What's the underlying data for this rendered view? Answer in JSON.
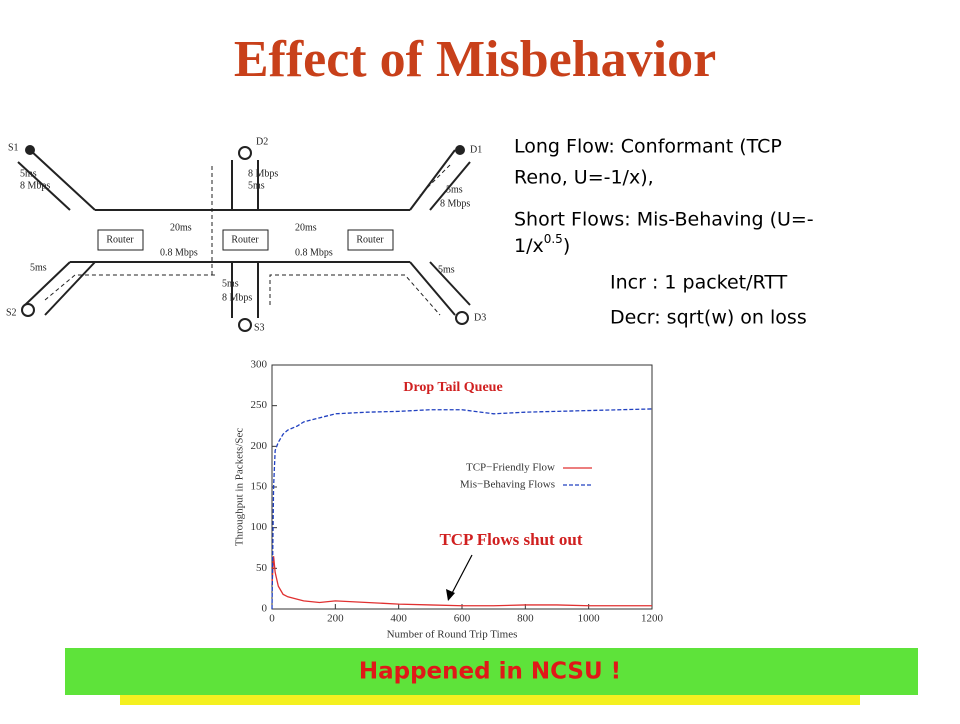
{
  "title": "Effect of Misbehavior",
  "diagram": {
    "labels": [
      "S1",
      "D2",
      "D1",
      "S2",
      "S3",
      "D3",
      "5ms",
      "8 Mbps",
      "8 Mbps",
      "5ms",
      "5ms",
      "8 Mbps",
      "20ms",
      "0.8 Mbps",
      "20ms",
      "0.8 Mbps",
      "5ms",
      "5ms",
      "8 Mbps",
      "5ms",
      "Router",
      "Router",
      "Router"
    ]
  },
  "notes": {
    "line1": "Long Flow: Conformant (TCP",
    "line2": "Reno, U=-1/x),",
    "line3": "Short Flows: Mis-Behaving (U=-",
    "line4_pre": "1/x",
    "line4_sup": "0.5",
    "line4_post": ")",
    "incr": "Incr : 1 packet/RTT",
    "decr": "Decr:  sqrt(w) on loss"
  },
  "chart_data": {
    "type": "line",
    "title": "Drop Tail Queue",
    "annotation": "TCP Flows shut out",
    "xlabel": "Number of Round Trip Times",
    "ylabel": "Throughput in Packets/Sec",
    "x": [
      0,
      5,
      10,
      20,
      35,
      50,
      80,
      100,
      150,
      200,
      300,
      400,
      500,
      600,
      700,
      800,
      900,
      1000,
      1100,
      1200
    ],
    "series": [
      {
        "name": "TCP−Friendly Flow",
        "color": "#e03030",
        "dashed": false,
        "values": [
          30,
          65,
          45,
          28,
          18,
          15,
          12,
          10,
          8,
          10,
          8,
          6,
          5,
          4,
          4,
          5,
          5,
          4,
          4,
          4
        ]
      },
      {
        "name": "Mis−Behaving Flows",
        "color": "#2040c0",
        "dashed": true,
        "values": [
          0,
          150,
          195,
          205,
          215,
          220,
          225,
          230,
          235,
          240,
          242,
          243,
          245,
          245,
          240,
          242,
          243,
          244,
          245,
          246
        ]
      }
    ],
    "xlim": [
      0,
      1200
    ],
    "xticks": [
      0,
      200,
      400,
      600,
      800,
      1000,
      1200
    ],
    "ylim": [
      0,
      300
    ],
    "yticks": [
      0,
      50,
      100,
      150,
      200,
      250,
      300
    ],
    "legend": "upper-right"
  },
  "banner": "Happened in NCSU !"
}
